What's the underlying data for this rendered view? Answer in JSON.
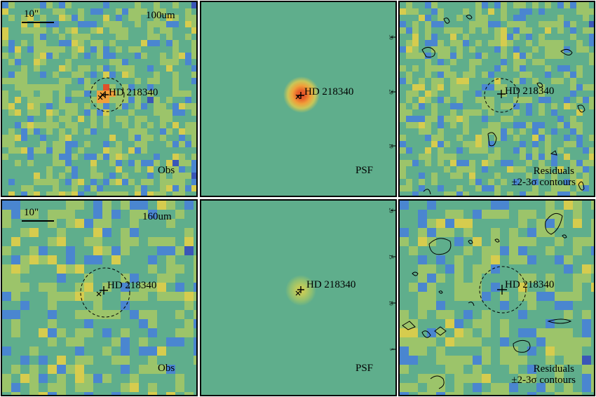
{
  "rows": [
    {
      "obs": {
        "band_label": "100um",
        "scale_label": "10\"",
        "corner_label": "Obs",
        "target_label": "HD 218340"
      },
      "psf": {
        "corner_label": "PSF",
        "target_label": "HD 218340",
        "tick_labels": [
          "30",
          "20",
          "10"
        ]
      },
      "resid": {
        "corner_label_1": "Residuals",
        "corner_label_2": "±2-3σ contours",
        "target_label": "HD 218340"
      }
    },
    {
      "obs": {
        "band_label": "160um",
        "scale_label": "10\"",
        "corner_label": "Obs",
        "target_label": "HD 218340"
      },
      "psf": {
        "corner_label": "PSF",
        "target_label": "HD 218340",
        "tick_labels": [
          "20",
          "15",
          "10",
          "5"
        ]
      },
      "resid": {
        "corner_label_1": "Residuals",
        "corner_label_2": "±2-3σ contours",
        "target_label": "HD 218340"
      }
    }
  ],
  "colors": {
    "frame": "#000000",
    "psf_background": "#5fae8c",
    "psf_core": "#e8622a",
    "palette": [
      "#4b1f8c",
      "#3a56b8",
      "#4a86d0",
      "#5fae8c",
      "#9cc46a",
      "#d6cc4e",
      "#f0a03a",
      "#e0502a"
    ]
  }
}
